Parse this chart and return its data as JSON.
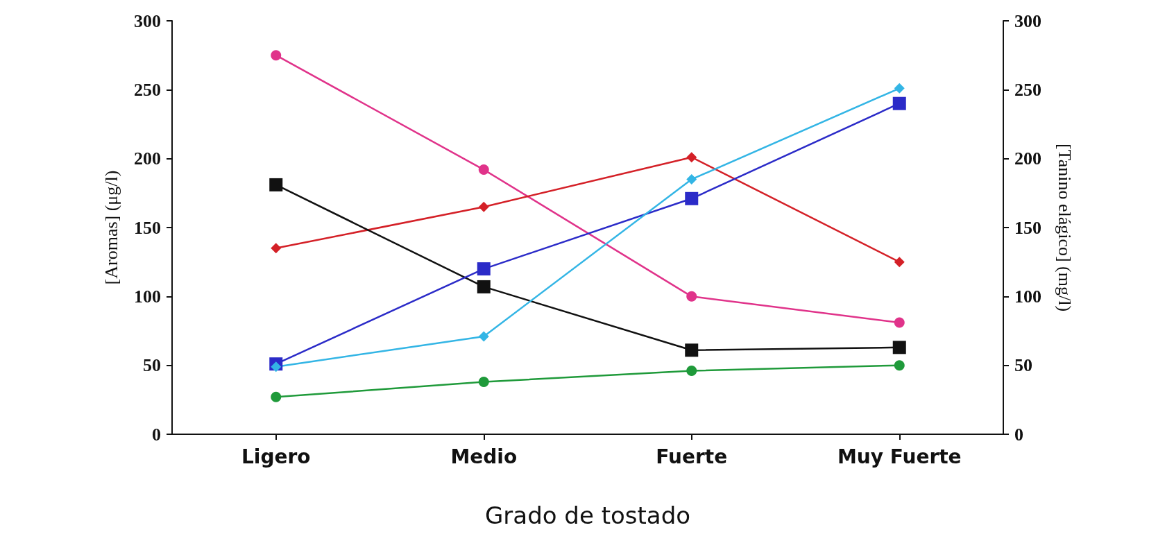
{
  "chart_data": {
    "type": "line",
    "xlabel": "Grado de tostado",
    "ylabel": "[Aromas] (μg/l)",
    "y2label": "[Tanino elágico] (mg/l)",
    "categories": [
      "Ligero",
      "Medio",
      "Fuerte",
      "Muy Fuerte"
    ],
    "series": [
      {
        "color": "#e0338a",
        "marker": "circle",
        "values": [
          275,
          192,
          100,
          81
        ]
      },
      {
        "color": "#d42027",
        "marker": "diamond",
        "values": [
          135,
          165,
          201,
          125
        ]
      },
      {
        "color": "#111111",
        "marker": "square",
        "values": [
          181,
          107,
          61,
          63
        ]
      },
      {
        "color": "#2b2bc8",
        "marker": "square",
        "values": [
          51,
          120,
          171,
          240
        ]
      },
      {
        "color": "#33b5e5",
        "marker": "diamond",
        "values": [
          49,
          71,
          185,
          251
        ]
      },
      {
        "color": "#1f9a3a",
        "marker": "circle",
        "values": [
          27,
          38,
          46,
          50
        ]
      }
    ],
    "ylim": [
      0,
      300
    ],
    "yticks": [
      0,
      50,
      100,
      150,
      200,
      250,
      300
    ],
    "y2lim": [
      0,
      300
    ],
    "y2ticks": [
      0,
      50,
      100,
      150,
      200,
      250,
      300
    ],
    "grid": false,
    "line_style": "solid"
  }
}
